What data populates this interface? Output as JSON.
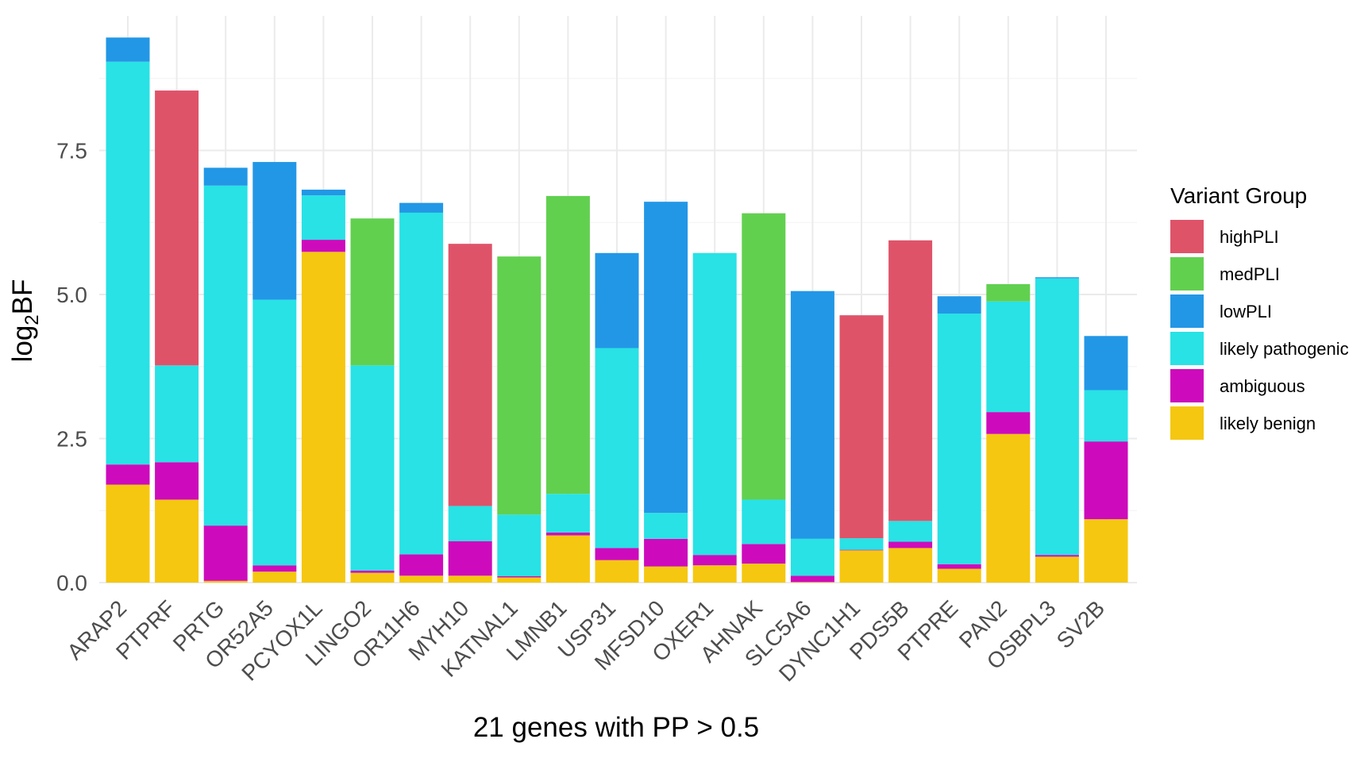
{
  "chart_data": {
    "type": "bar",
    "stacked": true,
    "title": "",
    "xlabel": "21 genes with PP > 0.5",
    "ylabel_main": "log",
    "ylabel_sub": "2",
    "ylabel_tail": "BF",
    "ylim": [
      0,
      9.45
    ],
    "yticks": [
      "0.0",
      "2.5",
      "5.0",
      "7.5"
    ],
    "ytick_values": [
      0,
      2.5,
      5,
      7.5
    ],
    "grid": true,
    "legend_position": "right",
    "legend_title": "Variant Group",
    "categories": [
      "ARAP2",
      "PTPRF",
      "PRTG",
      "OR52A5",
      "PCYOX1L",
      "LINGO2",
      "OR11H6",
      "MYH10",
      "KATNAL1",
      "LMNB1",
      "USP31",
      "MFSD10",
      "OXER1",
      "AHNAK",
      "SLC5A6",
      "DYNC1H1",
      "PDS5B",
      "PTPRE",
      "PAN2",
      "OSBPL3",
      "SV2B"
    ],
    "stack_order": [
      "likely benign",
      "ambiguous",
      "likely pathogenic",
      "lowPLI",
      "medPLI",
      "highPLI"
    ],
    "series": [
      {
        "name": "highPLI",
        "color": "#df5369",
        "values": [
          0,
          4.77,
          0,
          0,
          0,
          0,
          0,
          4.55,
          0,
          0,
          0,
          0,
          0,
          0,
          0,
          3.87,
          4.87,
          0,
          0,
          0,
          0
        ]
      },
      {
        "name": "medPLI",
        "color": "#61d04f",
        "values": [
          0,
          0,
          0,
          0,
          0,
          2.55,
          0,
          0,
          4.48,
          5.17,
          0,
          0,
          0,
          4.97,
          0,
          0,
          0,
          0,
          0.3,
          0,
          0
        ]
      },
      {
        "name": "lowPLI",
        "color": "#2297e6",
        "values": [
          0.42,
          0,
          0.31,
          2.39,
          0.1,
          0,
          0.17,
          0,
          0,
          0,
          1.65,
          5.4,
          0,
          0,
          4.3,
          0,
          0,
          0.3,
          0,
          0.02,
          0.94
        ]
      },
      {
        "name": "likely pathogenic",
        "color": "#28e2e5",
        "values": [
          6.99,
          1.68,
          5.9,
          4.61,
          0.77,
          3.56,
          5.93,
          0.61,
          1.07,
          0.67,
          3.47,
          0.45,
          5.24,
          0.77,
          0.64,
          0.2,
          0.36,
          4.35,
          1.92,
          4.8,
          0.89
        ]
      },
      {
        "name": "ambiguous",
        "color": "#cd0bbc",
        "values": [
          0.35,
          0.65,
          0.96,
          0.11,
          0.21,
          0.04,
          0.37,
          0.6,
          0.02,
          0.05,
          0.21,
          0.48,
          0.18,
          0.34,
          0.11,
          0.01,
          0.11,
          0.08,
          0.38,
          0.03,
          1.35
        ]
      },
      {
        "name": "likely benign",
        "color": "#f5c710",
        "values": [
          1.7,
          1.44,
          0.03,
          0.19,
          5.74,
          0.17,
          0.12,
          0.12,
          0.09,
          0.82,
          0.39,
          0.28,
          0.3,
          0.33,
          0.01,
          0.56,
          0.6,
          0.24,
          2.58,
          0.45,
          1.1
        ]
      }
    ],
    "legend_order": [
      "highPLI",
      "medPLI",
      "lowPLI",
      "likely pathogenic",
      "ambiguous",
      "likely benign"
    ]
  }
}
